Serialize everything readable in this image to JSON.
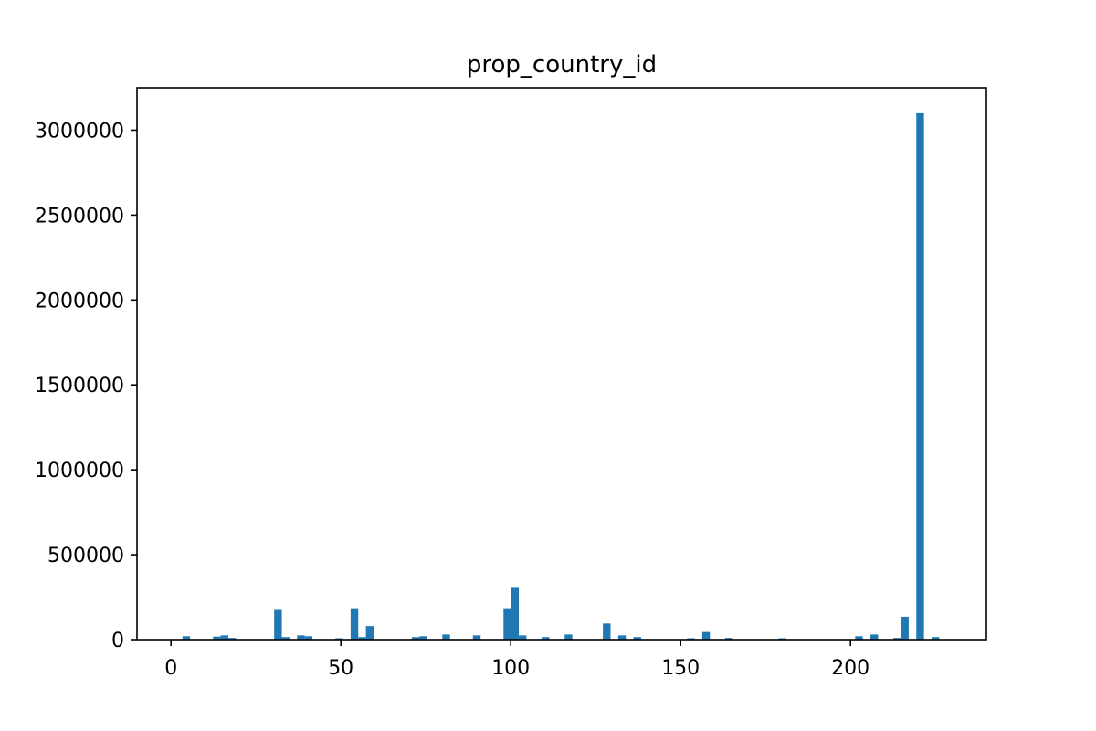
{
  "chart_data": {
    "type": "bar",
    "title": "prop_country_id",
    "xlabel": "",
    "ylabel": "",
    "xlim": [
      -10,
      240
    ],
    "ylim": [
      0,
      3250000
    ],
    "xticks": [
      0,
      50,
      100,
      150,
      200
    ],
    "yticks": [
      0,
      500000,
      1000000,
      1500000,
      2000000,
      2500000,
      3000000
    ],
    "grid": false,
    "bar_color": "#1f77b4",
    "bin_width": 2.25,
    "bins": [
      {
        "x": 4.5,
        "value": 20000
      },
      {
        "x": 13.5,
        "value": 18000
      },
      {
        "x": 15.75,
        "value": 25000
      },
      {
        "x": 18,
        "value": 10000
      },
      {
        "x": 31.5,
        "value": 175000
      },
      {
        "x": 33.75,
        "value": 15000
      },
      {
        "x": 38.25,
        "value": 25000
      },
      {
        "x": 40.5,
        "value": 20000
      },
      {
        "x": 49.5,
        "value": 8000
      },
      {
        "x": 54,
        "value": 185000
      },
      {
        "x": 56.25,
        "value": 15000
      },
      {
        "x": 58.5,
        "value": 80000
      },
      {
        "x": 72,
        "value": 15000
      },
      {
        "x": 74.25,
        "value": 20000
      },
      {
        "x": 81,
        "value": 30000
      },
      {
        "x": 90,
        "value": 25000
      },
      {
        "x": 99,
        "value": 185000
      },
      {
        "x": 101.25,
        "value": 310000
      },
      {
        "x": 103.5,
        "value": 25000
      },
      {
        "x": 110.25,
        "value": 15000
      },
      {
        "x": 117,
        "value": 30000
      },
      {
        "x": 128.25,
        "value": 95000
      },
      {
        "x": 132.75,
        "value": 25000
      },
      {
        "x": 137.25,
        "value": 15000
      },
      {
        "x": 153,
        "value": 8000
      },
      {
        "x": 157.5,
        "value": 45000
      },
      {
        "x": 164.25,
        "value": 10000
      },
      {
        "x": 180,
        "value": 8000
      },
      {
        "x": 202.5,
        "value": 20000
      },
      {
        "x": 207,
        "value": 30000
      },
      {
        "x": 213.75,
        "value": 10000
      },
      {
        "x": 216,
        "value": 135000
      },
      {
        "x": 220.5,
        "value": 3100000
      },
      {
        "x": 225,
        "value": 15000
      }
    ]
  }
}
